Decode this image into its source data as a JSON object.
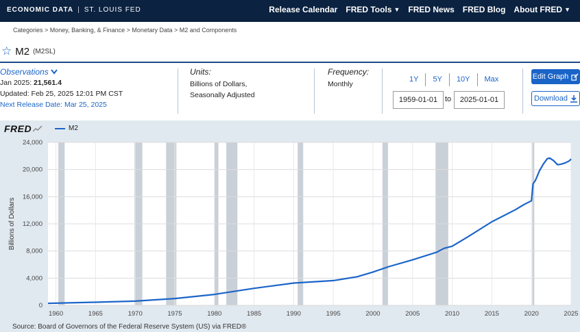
{
  "header": {
    "brand": "ECONOMIC DATA",
    "sep": "|",
    "org": "ST. LOUIS FED",
    "nav": [
      {
        "label": "Release Calendar",
        "dropdown": false
      },
      {
        "label": "FRED Tools",
        "dropdown": true
      },
      {
        "label": "FRED News",
        "dropdown": false
      },
      {
        "label": "FRED Blog",
        "dropdown": false
      },
      {
        "label": "About FRED",
        "dropdown": true
      }
    ]
  },
  "breadcrumb": "Categories > Money, Banking, & Finance > Monetary Data > M2 and Components",
  "series": {
    "title": "M2",
    "id": "(M2SL)"
  },
  "observations": {
    "label": "Observations",
    "latest_prefix": "Jan 2025:",
    "latest_value": "21,561.4",
    "updated": "Updated: Feb 25, 2025 12:01 PM CST",
    "next_release": "Next Release Date: Mar 25, 2025"
  },
  "units": {
    "label": "Units:",
    "line1": "Billions of Dollars,",
    "line2": "Seasonally Adjusted"
  },
  "frequency": {
    "label": "Frequency:",
    "value": "Monthly"
  },
  "range_buttons": [
    "1Y",
    "5Y",
    "10Y",
    "Max"
  ],
  "date_range": {
    "start": "1959-01-01",
    "to": "to",
    "end": "2025-01-01"
  },
  "buttons": {
    "edit": "Edit Graph",
    "download": "Download"
  },
  "legend": {
    "logo": "FRED",
    "series_name": "M2"
  },
  "source": "Source: Board of Governors of the Federal Reserve System (US) via FRED®",
  "colors": {
    "nav_bg": "#0b2240",
    "accent": "#1a64c8",
    "chart_bg": "#e1e9f0",
    "recession": "#c9d0d7"
  },
  "chart_data": {
    "type": "line",
    "ylabel": "Billions of Dollars",
    "ylim": [
      0,
      24000
    ],
    "xlim": [
      1959.0,
      2025.0
    ],
    "y_ticks": [
      0,
      4000,
      8000,
      12000,
      16000,
      20000,
      24000
    ],
    "y_tick_labels": [
      "0",
      "4,000",
      "8,000",
      "12,000",
      "16,000",
      "20,000",
      "24,000"
    ],
    "x_ticks": [
      1960,
      1965,
      1970,
      1975,
      1980,
      1985,
      1990,
      1995,
      2000,
      2005,
      2010,
      2015,
      2020,
      2025
    ],
    "grid": true,
    "legend_position": "top-left",
    "recessions": [
      [
        1960.3,
        1961.1
      ],
      [
        1969.9,
        1970.9
      ],
      [
        1973.9,
        1975.2
      ],
      [
        1980.0,
        1980.5
      ],
      [
        1981.5,
        1982.9
      ],
      [
        1990.5,
        1991.2
      ],
      [
        2001.2,
        2001.9
      ],
      [
        2007.9,
        2009.5
      ],
      [
        2020.1,
        2020.3
      ]
    ],
    "series": [
      {
        "name": "M2",
        "x": [
          1959,
          1965,
          1970,
          1975,
          1980,
          1985,
          1990,
          1995,
          1998,
          2000,
          2002,
          2005,
          2008,
          2009,
          2010,
          2012,
          2015,
          2018,
          2019,
          2020.0,
          2020.2,
          2020.5,
          2021.0,
          2021.5,
          2022.0,
          2022.3,
          2022.8,
          2023.3,
          2023.8,
          2024.3,
          2024.8,
          2025.0
        ],
        "y": [
          290,
          450,
          620,
          1000,
          1600,
          2500,
          3280,
          3640,
          4200,
          4900,
          5700,
          6700,
          7800,
          8400,
          8700,
          10100,
          12300,
          14100,
          14800,
          15400,
          17900,
          18400,
          19800,
          20800,
          21600,
          21700,
          21300,
          20700,
          20800,
          21000,
          21300,
          21561
        ]
      }
    ]
  }
}
